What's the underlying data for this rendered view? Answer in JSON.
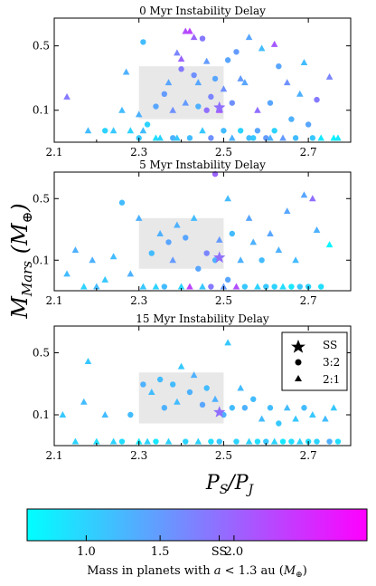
{
  "chart_data": {
    "type": "scatter",
    "ylabel": "M_Mars (M_⊕)",
    "xlabel": "P_S/P_J",
    "xlim": [
      2.1,
      2.8
    ],
    "ylim_log": [
      0.045,
      1.0
    ],
    "xticks": [
      2.1,
      2.3,
      2.5,
      2.7
    ],
    "xtick_labels": [
      "2.1",
      "2.3",
      "2.5",
      "2.7"
    ],
    "yticks": [
      0.1,
      0.5
    ],
    "ytick_labels": [
      "0.1",
      "0.5"
    ],
    "shaded_region": {
      "x": [
        2.3,
        2.5
      ],
      "y": [
        0.08,
        0.3
      ]
    },
    "ss_point": {
      "x": 2.49,
      "y": 0.107,
      "mass": 1.9
    },
    "legend": {
      "items": [
        {
          "label": "SS",
          "marker": "star"
        },
        {
          "label": "3:2",
          "marker": "circle"
        },
        {
          "label": "2:1",
          "marker": "triangle"
        }
      ],
      "position": "top-right of third panel"
    },
    "colorbar": {
      "label": "Mass in planets with a < 1.3 au (M_⊕)",
      "range": [
        0.6,
        2.9
      ],
      "ticks": [
        1.0,
        1.5,
        2.0
      ],
      "tick_labels": [
        "1.0",
        "1.5",
        "2.0"
      ],
      "ss_label": "SS",
      "ss_value": 1.9,
      "colormap": "cool",
      "colors": [
        "#00ffff",
        "#ff00ff"
      ]
    },
    "panels": [
      {
        "title": "0 Myr Instability Delay",
        "points": [
          [
            2.13,
            0.14,
            1.8,
            "t"
          ],
          [
            2.18,
            0.06,
            1.2,
            "t"
          ],
          [
            2.22,
            0.06,
            1.0,
            "c"
          ],
          [
            2.24,
            0.06,
            1.1,
            "t"
          ],
          [
            2.26,
            0.1,
            1.2,
            "t"
          ],
          [
            2.27,
            0.26,
            1.3,
            "t"
          ],
          [
            2.28,
            0.06,
            1.0,
            "t"
          ],
          [
            2.3,
            0.05,
            1.1,
            "c"
          ],
          [
            2.3,
            0.09,
            1.3,
            "t"
          ],
          [
            2.31,
            0.55,
            1.2,
            "c"
          ],
          [
            2.31,
            0.06,
            1.2,
            "t"
          ],
          [
            2.32,
            0.07,
            1.0,
            "c"
          ],
          [
            2.34,
            0.05,
            0.9,
            "t"
          ],
          [
            2.34,
            0.11,
            1.4,
            "c"
          ],
          [
            2.35,
            0.05,
            1.0,
            "t"
          ],
          [
            2.36,
            0.15,
            1.5,
            "c"
          ],
          [
            2.37,
            0.2,
            1.4,
            "t"
          ],
          [
            2.38,
            0.05,
            1.3,
            "c"
          ],
          [
            2.38,
            0.1,
            1.6,
            "t"
          ],
          [
            2.39,
            0.42,
            1.7,
            "t"
          ],
          [
            2.39,
            0.05,
            1.1,
            "t"
          ],
          [
            2.4,
            0.28,
            1.8,
            "c"
          ],
          [
            2.4,
            0.36,
            2.0,
            "t"
          ],
          [
            2.41,
            0.72,
            2.2,
            "t"
          ],
          [
            2.41,
            0.12,
            1.5,
            "t"
          ],
          [
            2.42,
            0.72,
            2.3,
            "t"
          ],
          [
            2.42,
            0.05,
            1.2,
            "c"
          ],
          [
            2.43,
            0.62,
            2.0,
            "t"
          ],
          [
            2.43,
            0.24,
            1.6,
            "c"
          ],
          [
            2.44,
            0.2,
            1.4,
            "t"
          ],
          [
            2.44,
            0.11,
            1.3,
            "c"
          ],
          [
            2.45,
            0.6,
            1.8,
            "c"
          ],
          [
            2.45,
            0.06,
            1.1,
            "t"
          ],
          [
            2.46,
            0.34,
            1.5,
            "t"
          ],
          [
            2.46,
            0.1,
            1.9,
            "c"
          ],
          [
            2.47,
            0.14,
            1.7,
            "c"
          ],
          [
            2.47,
            0.05,
            1.6,
            "c"
          ],
          [
            2.48,
            0.22,
            1.4,
            "c"
          ],
          [
            2.49,
            0.1,
            2.1,
            "t"
          ],
          [
            2.5,
            0.17,
            1.6,
            "t"
          ],
          [
            2.5,
            0.06,
            1.2,
            "c"
          ],
          [
            2.51,
            0.35,
            1.4,
            "c"
          ],
          [
            2.52,
            0.05,
            1.3,
            "t"
          ],
          [
            2.52,
            0.12,
            1.6,
            "c"
          ],
          [
            2.53,
            0.43,
            1.5,
            "c"
          ],
          [
            2.54,
            0.22,
            1.5,
            "t"
          ],
          [
            2.54,
            0.06,
            1.0,
            "c"
          ],
          [
            2.55,
            0.2,
            1.4,
            "t"
          ],
          [
            2.56,
            0.05,
            1.2,
            "c"
          ],
          [
            2.56,
            0.62,
            1.4,
            "t"
          ],
          [
            2.57,
            0.05,
            1.1,
            "c"
          ],
          [
            2.58,
            0.1,
            1.9,
            "t"
          ],
          [
            2.58,
            0.06,
            1.4,
            "c"
          ],
          [
            2.59,
            0.47,
            1.2,
            "t"
          ],
          [
            2.6,
            0.05,
            1.5,
            "c"
          ],
          [
            2.61,
            0.12,
            1.4,
            "c"
          ],
          [
            2.61,
            0.05,
            1.3,
            "t"
          ],
          [
            2.62,
            0.52,
            2.1,
            "t"
          ],
          [
            2.62,
            0.06,
            1.0,
            "c"
          ],
          [
            2.63,
            0.3,
            1.4,
            "c"
          ],
          [
            2.64,
            0.05,
            1.5,
            "t"
          ],
          [
            2.65,
            0.2,
            1.6,
            "t"
          ],
          [
            2.66,
            0.08,
            1.3,
            "c"
          ],
          [
            2.67,
            0.05,
            1.2,
            "c"
          ],
          [
            2.68,
            0.15,
            1.3,
            "t"
          ],
          [
            2.69,
            0.33,
            1.2,
            "t"
          ],
          [
            2.7,
            0.07,
            1.4,
            "c"
          ],
          [
            2.71,
            0.05,
            1.1,
            "c"
          ],
          [
            2.72,
            0.13,
            1.8,
            "c"
          ],
          [
            2.73,
            0.05,
            0.8,
            "t"
          ],
          [
            2.75,
            0.23,
            1.7,
            "t"
          ],
          [
            2.76,
            0.05,
            0.7,
            "t"
          ],
          [
            2.77,
            0.05,
            0.8,
            "t"
          ]
        ]
      },
      {
        "title": "5 Myr Instability Delay",
        "points": [
          [
            2.13,
            0.07,
            1.2,
            "t"
          ],
          [
            2.15,
            0.13,
            1.3,
            "t"
          ],
          [
            2.17,
            0.05,
            1.0,
            "t"
          ],
          [
            2.19,
            0.1,
            1.3,
            "t"
          ],
          [
            2.2,
            0.05,
            1.2,
            "t"
          ],
          [
            2.22,
            0.06,
            1.1,
            "t"
          ],
          [
            2.24,
            0.11,
            1.2,
            "t"
          ],
          [
            2.26,
            0.45,
            1.2,
            "c"
          ],
          [
            2.28,
            0.07,
            1.3,
            "t"
          ],
          [
            2.3,
            0.3,
            1.3,
            "t"
          ],
          [
            2.31,
            0.05,
            1.1,
            "t"
          ],
          [
            2.33,
            0.12,
            1.2,
            "c"
          ],
          [
            2.34,
            0.05,
            1.0,
            "t"
          ],
          [
            2.35,
            0.2,
            1.3,
            "t"
          ],
          [
            2.36,
            0.05,
            1.2,
            "c"
          ],
          [
            2.37,
            0.16,
            1.4,
            "c"
          ],
          [
            2.38,
            0.1,
            1.5,
            "t"
          ],
          [
            2.39,
            0.25,
            1.3,
            "t"
          ],
          [
            2.4,
            0.05,
            1.0,
            "t"
          ],
          [
            2.41,
            0.18,
            1.4,
            "c"
          ],
          [
            2.42,
            0.05,
            2.3,
            "t"
          ],
          [
            2.43,
            0.3,
            1.2,
            "t"
          ],
          [
            2.44,
            0.08,
            1.4,
            "c"
          ],
          [
            2.45,
            0.05,
            1.1,
            "t"
          ],
          [
            2.46,
            0.12,
            1.7,
            "c"
          ],
          [
            2.47,
            0.05,
            1.8,
            "c"
          ],
          [
            2.48,
            0.95,
            2.0,
            "c"
          ],
          [
            2.48,
            0.1,
            1.3,
            "c"
          ],
          [
            2.49,
            0.17,
            1.5,
            "t"
          ],
          [
            2.5,
            0.05,
            1.5,
            "t"
          ],
          [
            2.51,
            0.5,
            1.2,
            "t"
          ],
          [
            2.51,
            0.06,
            1.4,
            "c"
          ],
          [
            2.52,
            0.2,
            1.2,
            "c"
          ],
          [
            2.53,
            0.05,
            2.2,
            "t"
          ],
          [
            2.54,
            0.1,
            1.3,
            "t"
          ],
          [
            2.55,
            0.05,
            1.1,
            "c"
          ],
          [
            2.56,
            0.3,
            1.4,
            "t"
          ],
          [
            2.57,
            0.16,
            1.3,
            "t"
          ],
          [
            2.58,
            0.05,
            1.0,
            "t"
          ],
          [
            2.59,
            0.1,
            1.2,
            "c"
          ],
          [
            2.6,
            0.05,
            1.1,
            "c"
          ],
          [
            2.61,
            0.2,
            1.4,
            "t"
          ],
          [
            2.62,
            0.05,
            1.0,
            "c"
          ],
          [
            2.63,
            0.13,
            1.3,
            "t"
          ],
          [
            2.64,
            0.05,
            0.9,
            "t"
          ],
          [
            2.65,
            0.36,
            1.4,
            "t"
          ],
          [
            2.66,
            0.05,
            0.8,
            "c"
          ],
          [
            2.67,
            0.1,
            1.2,
            "t"
          ],
          [
            2.68,
            0.05,
            1.1,
            "c"
          ],
          [
            2.69,
            0.55,
            1.4,
            "t"
          ],
          [
            2.7,
            0.05,
            1.0,
            "c"
          ],
          [
            2.71,
            0.5,
            1.9,
            "t"
          ],
          [
            2.72,
            0.22,
            1.3,
            "t"
          ],
          [
            2.73,
            0.05,
            0.9,
            "c"
          ],
          [
            2.75,
            0.15,
            0.7,
            "t"
          ]
        ]
      },
      {
        "title": "15 Myr Instability Delay",
        "points": [
          [
            2.12,
            0.1,
            1.1,
            "t"
          ],
          [
            2.15,
            0.05,
            1.0,
            "t"
          ],
          [
            2.17,
            0.14,
            1.2,
            "t"
          ],
          [
            2.18,
            0.4,
            1.1,
            "t"
          ],
          [
            2.2,
            0.05,
            0.9,
            "t"
          ],
          [
            2.22,
            0.1,
            1.2,
            "t"
          ],
          [
            2.24,
            0.05,
            1.0,
            "t"
          ],
          [
            2.26,
            0.05,
            0.9,
            "c"
          ],
          [
            2.28,
            0.1,
            1.2,
            "c"
          ],
          [
            2.3,
            0.05,
            0.8,
            "t"
          ],
          [
            2.31,
            0.22,
            1.3,
            "c"
          ],
          [
            2.32,
            0.05,
            1.0,
            "t"
          ],
          [
            2.33,
            0.18,
            1.2,
            "t"
          ],
          [
            2.34,
            0.05,
            0.8,
            "c"
          ],
          [
            2.35,
            0.25,
            1.2,
            "c"
          ],
          [
            2.36,
            0.12,
            1.3,
            "c"
          ],
          [
            2.37,
            0.05,
            1.0,
            "t"
          ],
          [
            2.38,
            0.22,
            1.2,
            "c"
          ],
          [
            2.39,
            0.14,
            1.2,
            "t"
          ],
          [
            2.4,
            0.35,
            1.1,
            "t"
          ],
          [
            2.41,
            0.05,
            1.0,
            "c"
          ],
          [
            2.42,
            0.18,
            1.3,
            "c"
          ],
          [
            2.43,
            0.28,
            1.3,
            "t"
          ],
          [
            2.44,
            0.05,
            1.0,
            "t"
          ],
          [
            2.45,
            0.13,
            1.4,
            "c"
          ],
          [
            2.46,
            0.2,
            1.2,
            "c"
          ],
          [
            2.47,
            0.05,
            0.9,
            "c"
          ],
          [
            2.48,
            0.15,
            1.3,
            "t"
          ],
          [
            2.49,
            0.05,
            1.1,
            "c"
          ],
          [
            2.5,
            0.1,
            1.3,
            "c"
          ],
          [
            2.51,
            0.65,
            1.1,
            "t"
          ],
          [
            2.52,
            0.12,
            1.2,
            "c"
          ],
          [
            2.53,
            0.05,
            1.0,
            "c"
          ],
          [
            2.54,
            0.2,
            1.2,
            "t"
          ],
          [
            2.55,
            0.12,
            1.3,
            "c"
          ],
          [
            2.56,
            0.05,
            1.0,
            "t"
          ],
          [
            2.57,
            0.15,
            1.2,
            "c"
          ],
          [
            2.58,
            0.05,
            0.9,
            "c"
          ],
          [
            2.59,
            0.09,
            1.2,
            "t"
          ],
          [
            2.6,
            0.05,
            1.1,
            "c"
          ],
          [
            2.61,
            0.12,
            1.2,
            "c"
          ],
          [
            2.62,
            0.05,
            1.0,
            "t"
          ],
          [
            2.63,
            0.08,
            1.1,
            "c"
          ],
          [
            2.64,
            0.05,
            0.8,
            "c"
          ],
          [
            2.65,
            0.12,
            1.2,
            "t"
          ],
          [
            2.66,
            0.05,
            0.9,
            "c"
          ],
          [
            2.67,
            0.09,
            1.1,
            "t"
          ],
          [
            2.68,
            0.05,
            1.0,
            "t"
          ],
          [
            2.69,
            0.12,
            1.2,
            "c"
          ],
          [
            2.7,
            0.05,
            0.9,
            "c"
          ],
          [
            2.71,
            0.1,
            1.1,
            "t"
          ],
          [
            2.72,
            0.05,
            1.0,
            "c"
          ],
          [
            2.74,
            0.09,
            1.2,
            "t"
          ],
          [
            2.75,
            0.05,
            1.3,
            "c"
          ],
          [
            2.76,
            0.12,
            1.1,
            "t"
          ],
          [
            2.77,
            0.05,
            0.9,
            "c"
          ]
        ]
      }
    ]
  }
}
